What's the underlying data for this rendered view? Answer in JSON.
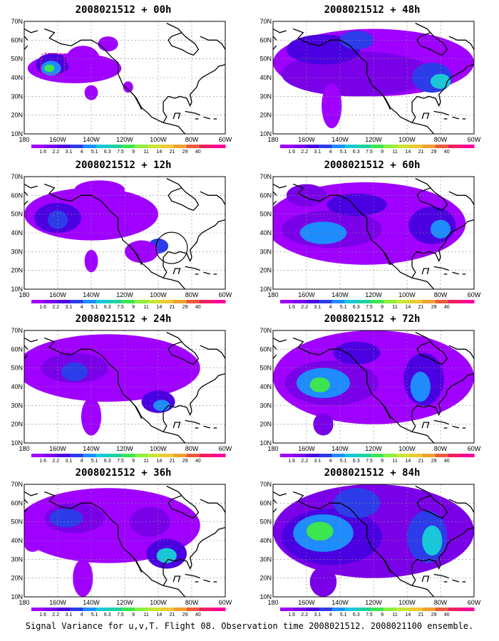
{
  "caption": "Signal Variance for u,v,T. Flight 08. Observation time 2008021512. 2008021100 ensemble.",
  "axes": {
    "x_ticks": [
      "180",
      "160W",
      "140W",
      "120W",
      "100W",
      "80W",
      "60W"
    ],
    "y_ticks": [
      "70N",
      "60N",
      "50N",
      "40N",
      "30N",
      "20N",
      "10N"
    ]
  },
  "colorbar": {
    "labels": [
      "1.6",
      "2.2",
      "3.1",
      "4",
      "5.1",
      "6.3",
      "7.5",
      "9",
      "11",
      "14",
      "21",
      "29",
      "40"
    ],
    "colors": [
      "#a000ff",
      "#7a00e8",
      "#4a00e0",
      "#2c3ce8",
      "#1e8cff",
      "#19c8d8",
      "#1ed2a0",
      "#3ce650",
      "#8cf03c",
      "#c8e632",
      "#f0c832",
      "#f0a030",
      "#f05a3c",
      "#f01e64",
      "#ff0096"
    ]
  },
  "panels": [
    {
      "id": "p00",
      "title": "2008021512 + 00h"
    },
    {
      "id": "p48",
      "title": "2008021512 + 48h"
    },
    {
      "id": "p12",
      "title": "2008021512 + 12h"
    },
    {
      "id": "p60",
      "title": "2008021512 + 60h"
    },
    {
      "id": "p24",
      "title": "2008021512 + 24h"
    },
    {
      "id": "p72",
      "title": "2008021512 + 72h"
    },
    {
      "id": "p36",
      "title": "2008021512 + 36h"
    },
    {
      "id": "p84",
      "title": "2008021512 + 84h"
    }
  ]
}
